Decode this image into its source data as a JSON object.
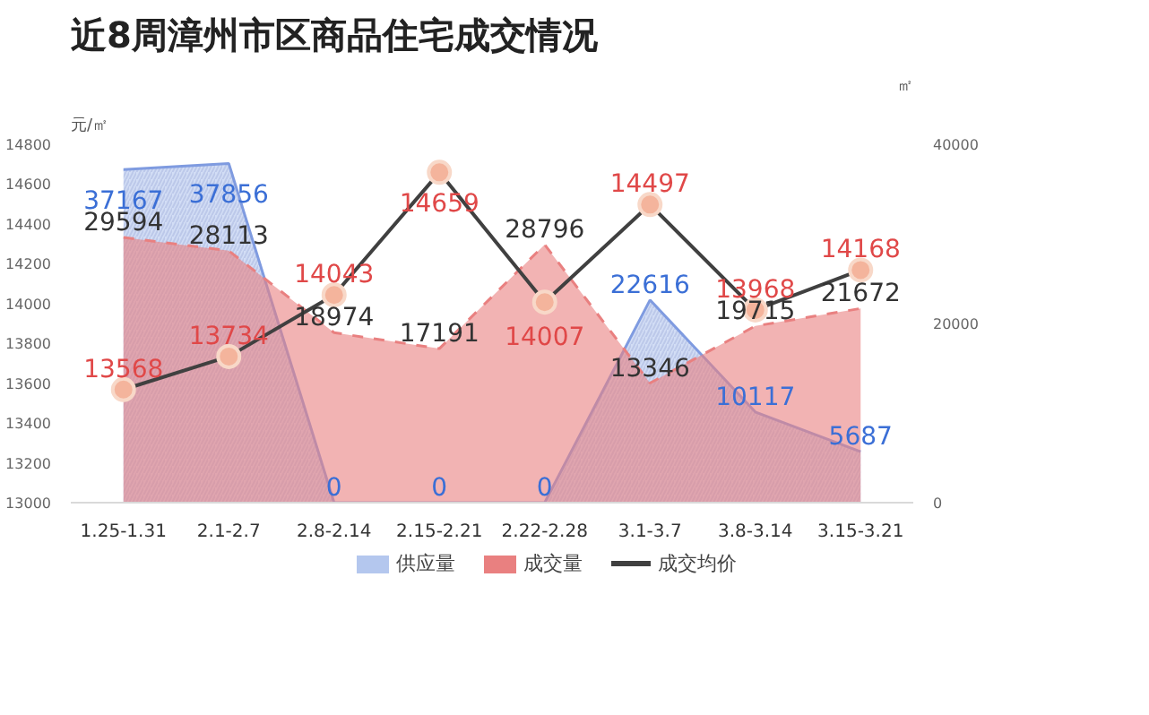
{
  "chart_data": {
    "type": "area",
    "title": "近8周漳州市区商品住宅成交情况",
    "ylabel": "元/㎡",
    "y2label": "㎡",
    "categories": [
      "1.25-1.31",
      "2.1-2.7",
      "2.8-2.14",
      "2.15-2.21",
      "2.22-2.28",
      "3.1-3.7",
      "3.8-3.14",
      "3.15-3.21"
    ],
    "series": [
      {
        "name": "供应量",
        "axis": "y2",
        "color": "#b4c7ee",
        "line_style": "solid",
        "values": [
          37167,
          37856,
          0,
          0,
          0,
          22616,
          10117,
          5687
        ]
      },
      {
        "name": "成交量",
        "axis": "y2",
        "color": "#e98080",
        "line_style": "dashed",
        "values": [
          29594,
          28113,
          18974,
          17191,
          28796,
          13346,
          19715,
          21672
        ]
      },
      {
        "name": "成交均价",
        "type": "line",
        "color": "#404040",
        "marker": "circle",
        "line_style": "solid",
        "values": [
          13568,
          13734,
          14043,
          14659,
          14007,
          14497,
          13968,
          14168
        ]
      }
    ],
    "ylim": [
      13000,
      14800
    ],
    "yticks": [
      13000,
      13200,
      13400,
      13600,
      13800,
      14000,
      14200,
      14400,
      14600,
      14800
    ],
    "y2lim": [
      0,
      40000
    ],
    "y2ticks": [
      0,
      20000,
      40000
    ],
    "data_labels": true,
    "grid": false,
    "legend": "bottom"
  }
}
